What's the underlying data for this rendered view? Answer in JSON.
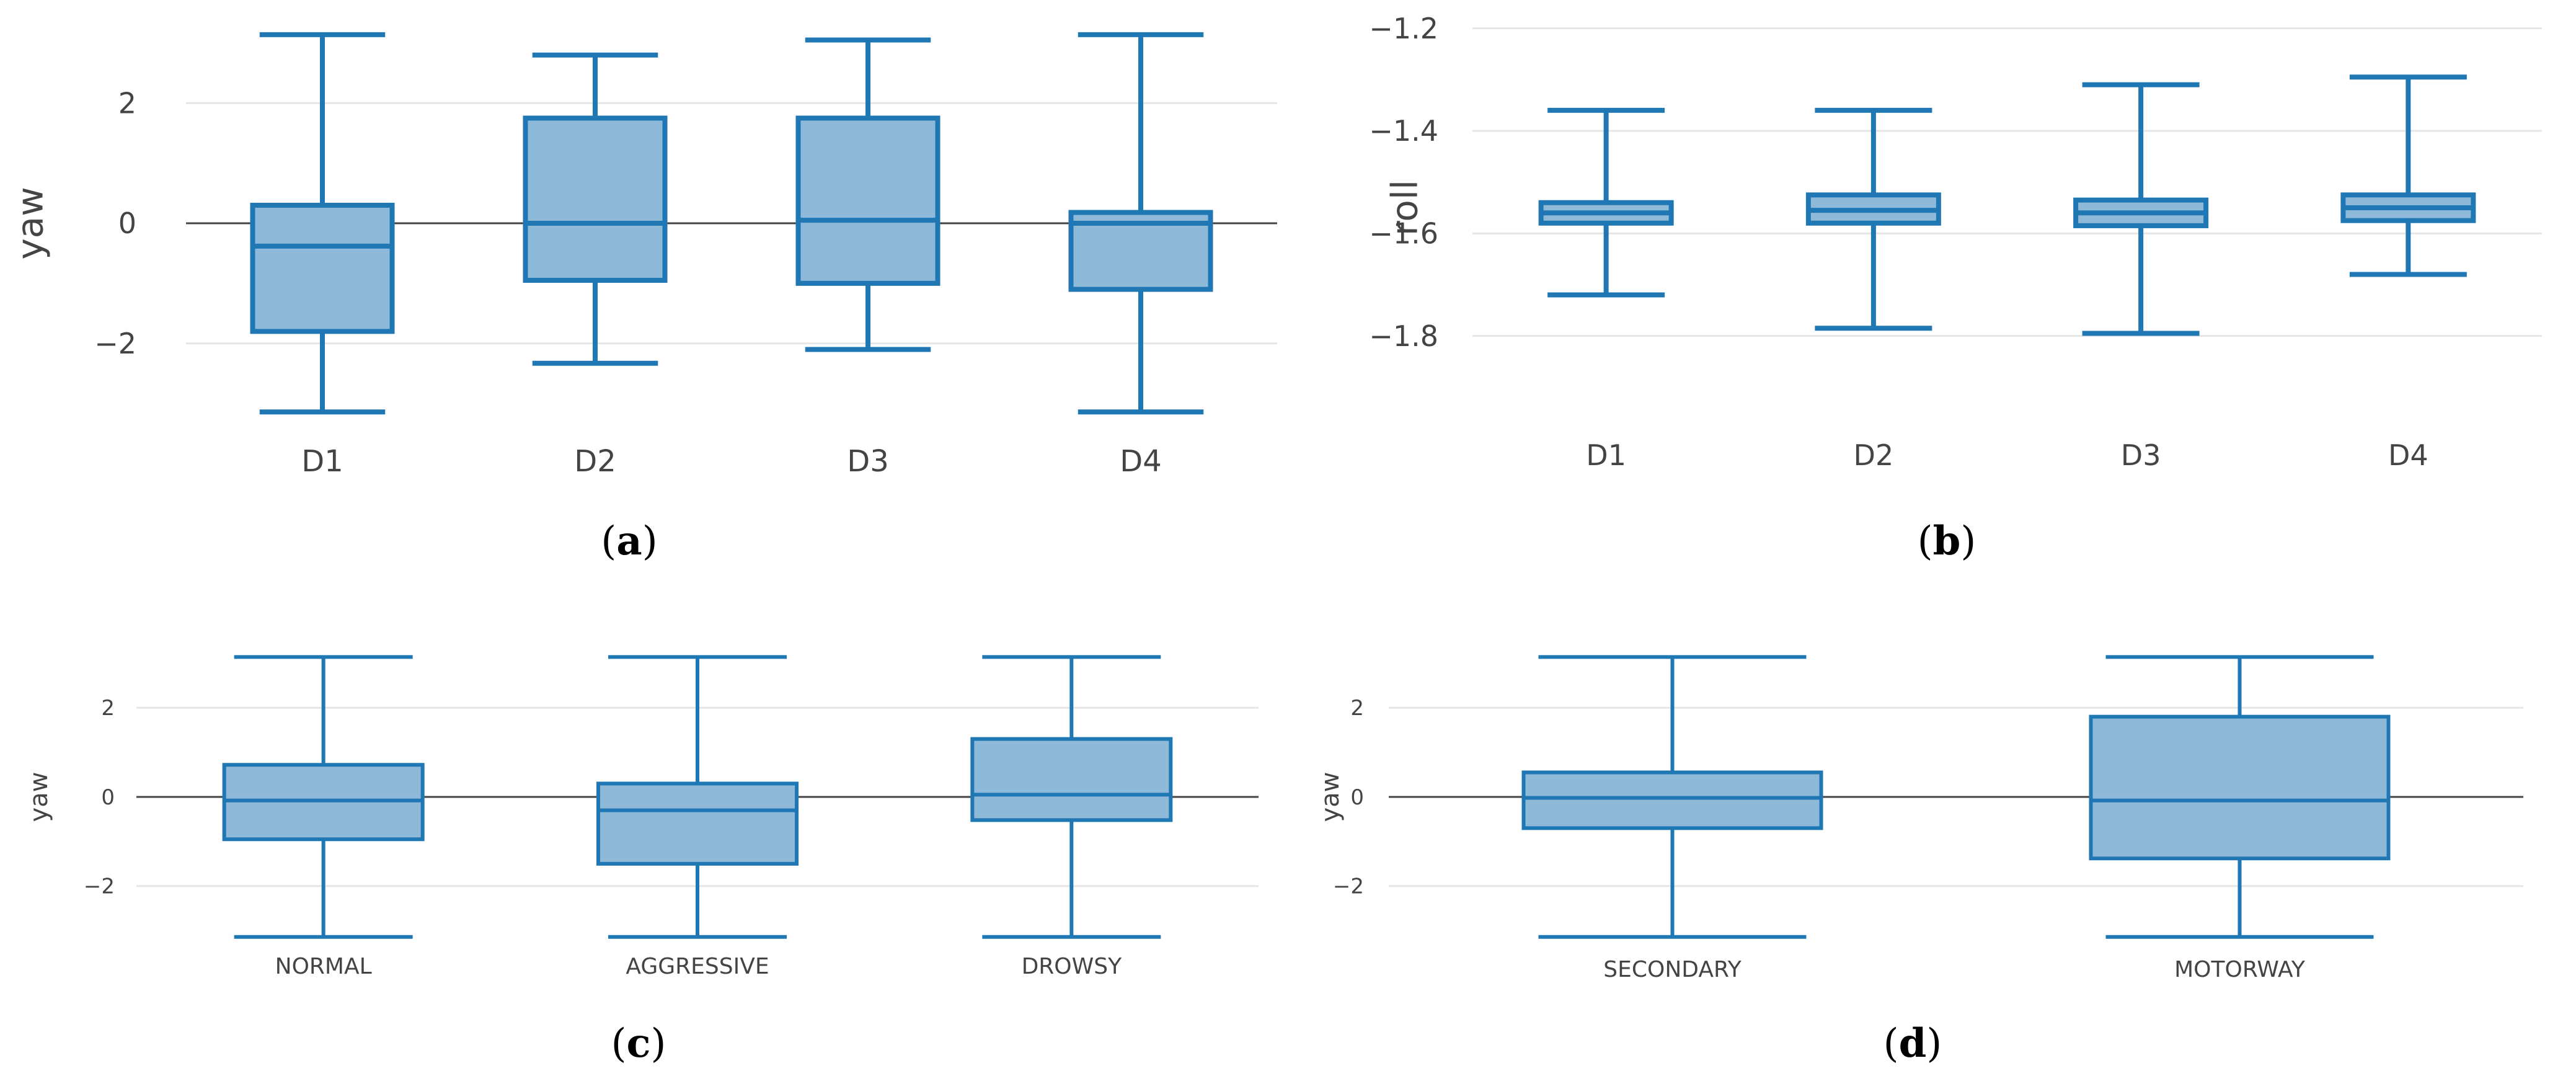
{
  "colors": {
    "box_fill": "#8fb9d9",
    "box_stroke": "#1f77b4",
    "grid": "#e6e6e6",
    "zero": "#444444",
    "text": "#444444"
  },
  "chart_data": [
    {
      "id": "a",
      "caption_letter": "a",
      "type": "box",
      "ylabel": "yaw",
      "ylim": [
        -3.2,
        3.2
      ],
      "yticks": [
        2,
        0,
        -2
      ],
      "ytick_labels": [
        "2",
        "0",
        "−2"
      ],
      "zero_line": true,
      "categories": [
        "D1",
        "D2",
        "D3",
        "D4"
      ],
      "boxes": [
        {
          "min": -3.14,
          "q1": -1.8,
          "median": -0.38,
          "q3": 0.3,
          "max": 3.14
        },
        {
          "min": -2.33,
          "q1": -0.95,
          "median": 0.0,
          "q3": 1.75,
          "max": 2.8
        },
        {
          "min": -2.1,
          "q1": -1.0,
          "median": 0.05,
          "q3": 1.75,
          "max": 3.05
        },
        {
          "min": -3.14,
          "q1": -1.1,
          "median": 0.0,
          "q3": 0.18,
          "max": 3.14
        }
      ]
    },
    {
      "id": "b",
      "caption_letter": "b",
      "type": "box",
      "ylabel": "roll",
      "ylim": [
        -1.925,
        -1.175
      ],
      "yticks": [
        -1.2,
        -1.4,
        -1.6,
        -1.8
      ],
      "ytick_labels": [
        "−1.2",
        "−1.4",
        "−1.6",
        "−1.8"
      ],
      "zero_line": false,
      "categories": [
        "D1",
        "D2",
        "D3",
        "D4"
      ],
      "boxes": [
        {
          "min": -1.72,
          "q1": -1.58,
          "median": -1.56,
          "q3": -1.54,
          "max": -1.36
        },
        {
          "min": -1.785,
          "q1": -1.58,
          "median": -1.555,
          "q3": -1.525,
          "max": -1.36
        },
        {
          "min": -1.795,
          "q1": -1.585,
          "median": -1.56,
          "q3": -1.535,
          "max": -1.31
        },
        {
          "min": -1.68,
          "q1": -1.575,
          "median": -1.55,
          "q3": -1.525,
          "max": -1.295
        }
      ]
    },
    {
      "id": "c",
      "caption_letter": "c",
      "type": "box",
      "ylabel": "yaw",
      "ylim": [
        -3.2,
        3.2
      ],
      "yticks": [
        2,
        0,
        -2
      ],
      "ytick_labels": [
        "2",
        "0",
        "−2"
      ],
      "zero_line": true,
      "categories": [
        "NORMAL",
        "AGGRESSIVE",
        "DROWSY"
      ],
      "boxes": [
        {
          "min": -3.14,
          "q1": -0.95,
          "median": -0.08,
          "q3": 0.72,
          "max": 3.14
        },
        {
          "min": -3.14,
          "q1": -1.5,
          "median": -0.3,
          "q3": 0.3,
          "max": 3.14
        },
        {
          "min": -3.14,
          "q1": -0.52,
          "median": 0.05,
          "q3": 1.3,
          "max": 3.14
        }
      ]
    },
    {
      "id": "d",
      "caption_letter": "d",
      "type": "box",
      "ylabel": "yaw",
      "ylim": [
        -3.2,
        3.2
      ],
      "yticks": [
        2,
        0,
        -2
      ],
      "ytick_labels": [
        "2",
        "0",
        "−2"
      ],
      "zero_line": true,
      "categories": [
        "SECONDARY",
        "MOTORWAY"
      ],
      "boxes": [
        {
          "min": -3.14,
          "q1": -0.7,
          "median": -0.02,
          "q3": 0.55,
          "max": 3.14
        },
        {
          "min": -3.14,
          "q1": -1.38,
          "median": -0.08,
          "q3": 1.8,
          "max": 3.14
        }
      ]
    }
  ]
}
